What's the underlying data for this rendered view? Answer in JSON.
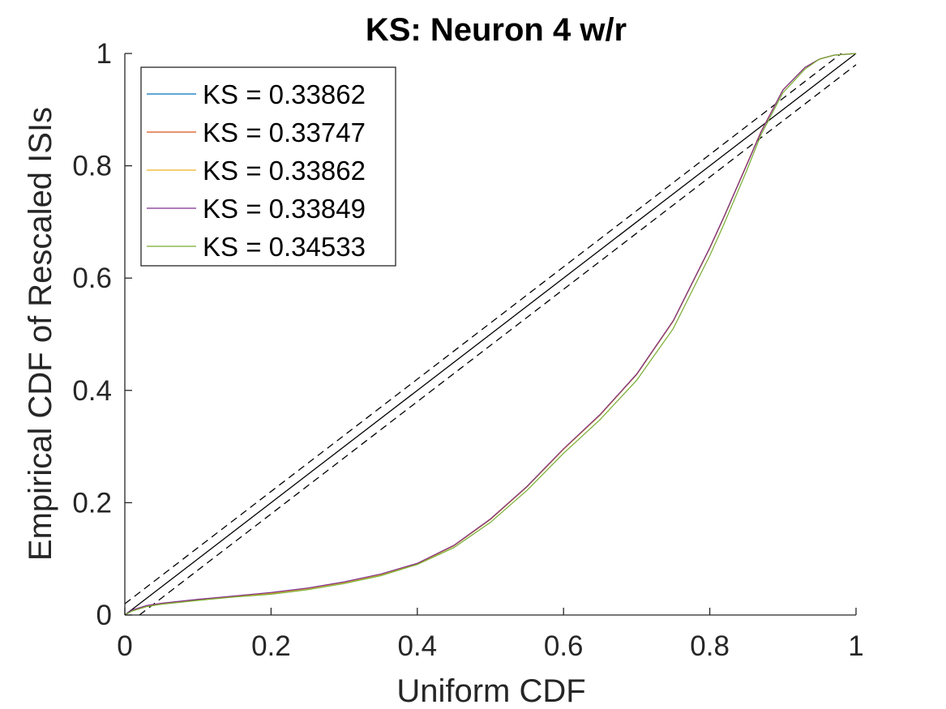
{
  "chart_data": {
    "type": "line",
    "title": "KS: Neuron 4 w/r",
    "xlabel": "Uniform CDF",
    "ylabel": "Empirical CDF of Rescaled ISIs",
    "xlim": [
      0,
      1
    ],
    "ylim": [
      0,
      1
    ],
    "xticks": [
      "0",
      "0.2",
      "0.4",
      "0.6",
      "0.8",
      "1"
    ],
    "yticks": [
      "0",
      "0.2",
      "0.4",
      "0.6",
      "0.8",
      "1"
    ],
    "grid": false,
    "legend_position": "top-left",
    "reference_lines": [
      {
        "style": "solid",
        "color": "#000000",
        "x": [
          0,
          1
        ],
        "y": [
          0,
          1
        ]
      },
      {
        "style": "dashed",
        "color": "#000000",
        "x": [
          0,
          0.98
        ],
        "y": [
          0.02,
          1
        ]
      },
      {
        "style": "dashed",
        "color": "#000000",
        "x": [
          0.02,
          1
        ],
        "y": [
          0,
          0.98
        ]
      }
    ],
    "x": [
      0,
      0.01,
      0.03,
      0.05,
      0.1,
      0.15,
      0.2,
      0.25,
      0.3,
      0.35,
      0.4,
      0.45,
      0.5,
      0.55,
      0.6,
      0.65,
      0.7,
      0.75,
      0.8,
      0.82,
      0.85,
      0.87,
      0.9,
      0.93,
      0.95,
      0.97,
      1.0
    ],
    "series": [
      {
        "name": "KS = 0.33862",
        "color": "#0072BD",
        "values": [
          0,
          0.008,
          0.016,
          0.02,
          0.027,
          0.033,
          0.039,
          0.047,
          0.058,
          0.072,
          0.091,
          0.123,
          0.17,
          0.228,
          0.295,
          0.356,
          0.428,
          0.523,
          0.653,
          0.71,
          0.8,
          0.86,
          0.935,
          0.975,
          0.99,
          0.997,
          1.0
        ]
      },
      {
        "name": "KS = 0.33747",
        "color": "#D95319",
        "values": [
          0,
          0.008,
          0.016,
          0.02,
          0.027,
          0.033,
          0.039,
          0.047,
          0.058,
          0.072,
          0.092,
          0.124,
          0.171,
          0.229,
          0.296,
          0.357,
          0.429,
          0.524,
          0.654,
          0.711,
          0.801,
          0.861,
          0.935,
          0.975,
          0.99,
          0.997,
          1.0
        ]
      },
      {
        "name": "KS = 0.33862",
        "color": "#EDB120",
        "values": [
          0,
          0.008,
          0.016,
          0.02,
          0.027,
          0.033,
          0.039,
          0.047,
          0.058,
          0.072,
          0.091,
          0.123,
          0.17,
          0.228,
          0.295,
          0.356,
          0.428,
          0.523,
          0.653,
          0.71,
          0.8,
          0.86,
          0.935,
          0.975,
          0.99,
          0.997,
          1.0
        ]
      },
      {
        "name": "KS = 0.33849",
        "color": "#7E2F8E",
        "values": [
          0,
          0.009,
          0.017,
          0.021,
          0.028,
          0.034,
          0.04,
          0.048,
          0.059,
          0.073,
          0.092,
          0.124,
          0.171,
          0.229,
          0.296,
          0.357,
          0.429,
          0.524,
          0.654,
          0.711,
          0.8,
          0.86,
          0.935,
          0.975,
          0.99,
          0.997,
          1.0
        ]
      },
      {
        "name": "KS = 0.34533",
        "color": "#77AC30",
        "values": [
          0,
          0.007,
          0.015,
          0.019,
          0.026,
          0.032,
          0.037,
          0.045,
          0.056,
          0.07,
          0.09,
          0.12,
          0.165,
          0.222,
          0.288,
          0.348,
          0.418,
          0.51,
          0.64,
          0.698,
          0.79,
          0.855,
          0.93,
          0.972,
          0.99,
          0.997,
          1.0
        ]
      }
    ]
  }
}
